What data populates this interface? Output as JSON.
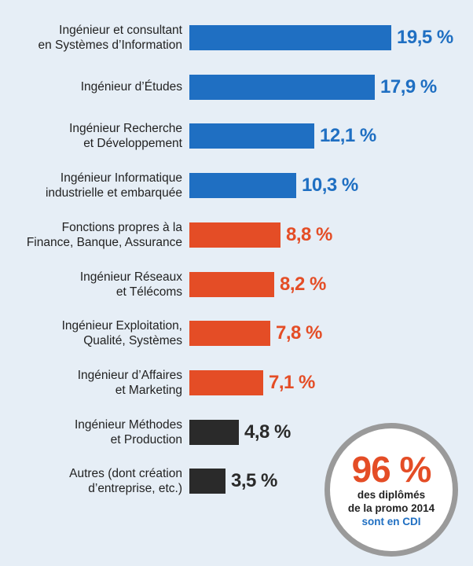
{
  "colors": {
    "blue": "#1f6fc2",
    "orange": "#e44d26",
    "dark": "#2a2a2a",
    "background": "#e6eef6",
    "badge_ring": "#9a9a9a"
  },
  "chart_data": {
    "type": "bar",
    "orientation": "horizontal",
    "unit": "%",
    "xlim": [
      0,
      19.5
    ],
    "categories": [
      [
        "Ingénieur et consultant",
        "en Systèmes d’Information"
      ],
      [
        "Ingénieur d’Études"
      ],
      [
        "Ingénieur Recherche",
        "et Développement"
      ],
      [
        "Ingénieur Informatique",
        "industrielle et embarquée"
      ],
      [
        "Fonctions propres à la",
        "Finance, Banque, Assurance"
      ],
      [
        "Ingénieur Réseaux",
        "et Télécoms"
      ],
      [
        "Ingénieur Exploitation,",
        "Qualité, Systèmes"
      ],
      [
        "Ingénieur d’Affaires",
        "et Marketing"
      ],
      [
        "Ingénieur Méthodes",
        "et Production"
      ],
      [
        "Autres (dont création",
        "d’entreprise, etc.)"
      ]
    ],
    "values": [
      19.5,
      17.9,
      12.1,
      10.3,
      8.8,
      8.2,
      7.8,
      7.1,
      4.8,
      3.5
    ],
    "value_labels": [
      "19,5 %",
      "17,9 %",
      "12,1 %",
      "10,3 %",
      "8,8 %",
      "8,2 %",
      "7,8 %",
      "7,1 %",
      "4,8 %",
      "3,5 %"
    ],
    "bar_colors": [
      "blue",
      "blue",
      "blue",
      "blue",
      "orange",
      "orange",
      "orange",
      "orange",
      "dark",
      "dark"
    ],
    "grid": false,
    "legend": "none"
  },
  "badge": {
    "number": "96 %",
    "line1": "des diplômés",
    "line2": "de la promo 2014",
    "line3": "sont en CDI"
  }
}
